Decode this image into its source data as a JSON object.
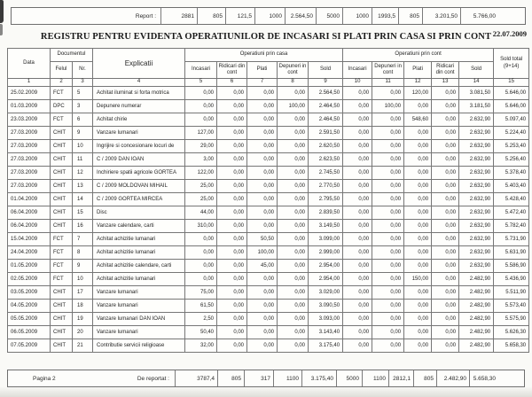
{
  "report_bar": {
    "label": "Report :",
    "values": [
      "2881",
      "805",
      "121,5",
      "1000",
      "2.564,50",
      "5000",
      "1000",
      "1993,5",
      "805",
      "3.201,50",
      "5.766,00"
    ]
  },
  "header": {
    "title": "REGISTRU PENTRU EVIDENTA OPERATIUNILOR DE INCASARI SI PLATI PRIN CASA SI PRIN CONT",
    "date": "22.07.2009"
  },
  "table": {
    "columns": {
      "data": "Data",
      "documentul": "Documentul",
      "felul": "Felul",
      "nr": "Nr.",
      "explicatii": "Explicatii",
      "operatiuni_casa": "Operatiuni prin casa",
      "operatiuni_cont": "Operatiuni prin cont",
      "casa_sub": [
        "Incasari",
        "Ridicari din cont",
        "Plati",
        "Depuneri in cont",
        "Sold"
      ],
      "cont_sub": [
        "Incasari",
        "Depuneri in cont",
        "Plati",
        "Ridicari din cont",
        "Sold"
      ],
      "sold_total_line1": "Sold total",
      "sold_total_line2": "(9+14)",
      "col_numbers": [
        "1",
        "2",
        "3",
        "4",
        "5",
        "6",
        "7",
        "8",
        "9",
        "10",
        "11",
        "12",
        "13",
        "14",
        "15"
      ]
    },
    "rows": [
      [
        "25.02.2009",
        "FCT",
        "5",
        "Achitat iluminat si forta motrica",
        "0,00",
        "0,00",
        "0,00",
        "0,00",
        "2.564,50",
        "0,00",
        "0,00",
        "120,00",
        "0,00",
        "3.081,50",
        "5.646,00"
      ],
      [
        "01.03.2009",
        "DPC",
        "3",
        "Depunere numerar",
        "0,00",
        "0,00",
        "0,00",
        "100,00",
        "2.464,50",
        "0,00",
        "100,00",
        "0,00",
        "0,00",
        "3.181,50",
        "5.646,00"
      ],
      [
        "23.03.2009",
        "FCT",
        "6",
        "Achitat chirie",
        "0,00",
        "0,00",
        "0,00",
        "0,00",
        "2.464,50",
        "0,00",
        "0,00",
        "548,60",
        "0,00",
        "2.632,90",
        "5.097,40"
      ],
      [
        "27.03.2009",
        "CHIT",
        "9",
        "Vanzare lumanari",
        "127,00",
        "0,00",
        "0,00",
        "0,00",
        "2.591,50",
        "0,00",
        "0,00",
        "0,00",
        "0,00",
        "2.632,90",
        "5.224,40"
      ],
      [
        "27.03.2009",
        "CHIT",
        "10",
        "Ingrijire si concesionare locuri de",
        "29,00",
        "0,00",
        "0,00",
        "0,00",
        "2.620,50",
        "0,00",
        "0,00",
        "0,00",
        "0,00",
        "2.632,90",
        "5.253,40"
      ],
      [
        "27.03.2009",
        "CHIT",
        "11",
        "C / 2009  DAN IOAN",
        "3,00",
        "0,00",
        "0,00",
        "0,00",
        "2.623,50",
        "0,00",
        "0,00",
        "0,00",
        "0,00",
        "2.632,90",
        "5.256,40"
      ],
      [
        "27.03.2009",
        "CHIT",
        "12",
        "Inchiriere spatii agricole GORTEA",
        "122,00",
        "0,00",
        "0,00",
        "0,00",
        "2.745,50",
        "0,00",
        "0,00",
        "0,00",
        "0,00",
        "2.632,90",
        "5.378,40"
      ],
      [
        "27.03.2009",
        "CHIT",
        "13",
        "C / 2009 MOLDOVAN MIHAIL",
        "25,00",
        "0,00",
        "0,00",
        "0,00",
        "2.770,50",
        "0,00",
        "0,00",
        "0,00",
        "0,00",
        "2.632,90",
        "5.403,40"
      ],
      [
        "01.04.2009",
        "CHIT",
        "14",
        "C / 2009  GORTEA MIRCEA",
        "25,00",
        "0,00",
        "0,00",
        "0,00",
        "2.795,50",
        "0,00",
        "0,00",
        "0,00",
        "0,00",
        "2.632,90",
        "5.428,40"
      ],
      [
        "06.04.2009",
        "CHIT",
        "15",
        "Disc",
        "44,00",
        "0,00",
        "0,00",
        "0,00",
        "2.839,50",
        "0,00",
        "0,00",
        "0,00",
        "0,00",
        "2.632,90",
        "5.472,40"
      ],
      [
        "06.04.2009",
        "CHIT",
        "16",
        "Vanzare calendare, carti",
        "310,00",
        "0,00",
        "0,00",
        "0,00",
        "3.149,50",
        "0,00",
        "0,00",
        "0,00",
        "0,00",
        "2.632,90",
        "5.782,40"
      ],
      [
        "15.04.2009",
        "FCT",
        "7",
        "Achitat achizitie lumanari",
        "0,00",
        "0,00",
        "50,50",
        "0,00",
        "3.099,00",
        "0,00",
        "0,00",
        "0,00",
        "0,00",
        "2.632,90",
        "5.731,90"
      ],
      [
        "24.04.2009",
        "FCT",
        "8",
        "Achitat achizitie lumanari",
        "0,00",
        "0,00",
        "100,00",
        "0,00",
        "2.999,00",
        "0,00",
        "0,00",
        "0,00",
        "0,00",
        "2.632,90",
        "5.631,90"
      ],
      [
        "01.05.2009",
        "FCT",
        "9",
        "Achitat achizitie calendare, carti",
        "0,00",
        "0,00",
        "45,00",
        "0,00",
        "2.954,00",
        "0,00",
        "0,00",
        "0,00",
        "0,00",
        "2.632,90",
        "5.586,90"
      ],
      [
        "02.05.2009",
        "FCT",
        "10",
        "Achitat achizitie lumanari",
        "0,00",
        "0,00",
        "0,00",
        "0,00",
        "2.954,00",
        "0,00",
        "0,00",
        "150,00",
        "0,00",
        "2.482,90",
        "5.436,90"
      ],
      [
        "03.05.2009",
        "CHIT",
        "17",
        "Vanzare lumanari",
        "75,00",
        "0,00",
        "0,00",
        "0,00",
        "3.029,00",
        "0,00",
        "0,00",
        "0,00",
        "0,00",
        "2.482,90",
        "5.511,90"
      ],
      [
        "04.05.2009",
        "CHIT",
        "18",
        "Vanzare lumanari",
        "61,50",
        "0,00",
        "0,00",
        "0,00",
        "3.090,50",
        "0,00",
        "0,00",
        "0,00",
        "0,00",
        "2.482,90",
        "5.573,40"
      ],
      [
        "05.05.2009",
        "CHIT",
        "19",
        "Vanzare lumanari DAN IOAN",
        "2,50",
        "0,00",
        "0,00",
        "0,00",
        "3.093,00",
        "0,00",
        "0,00",
        "0,00",
        "0,00",
        "2.482,90",
        "5.575,90"
      ],
      [
        "06.05.2009",
        "CHIT",
        "20",
        "Vanzare lumanari",
        "50,40",
        "0,00",
        "0,00",
        "0,00",
        "3.143,40",
        "0,00",
        "0,00",
        "0,00",
        "0,00",
        "2.482,90",
        "5.626,30"
      ],
      [
        "07.05.2009",
        "CHIT",
        "21",
        "Contributie servicii religioase",
        "32,00",
        "0,00",
        "0,00",
        "0,00",
        "3.175,40",
        "0,00",
        "0,00",
        "0,00",
        "0,00",
        "2.482,90",
        "5.658,30"
      ]
    ]
  },
  "footer_bar": {
    "page": "Pagina 2",
    "label": "De reportat :",
    "values": [
      "3787,4",
      "805",
      "317",
      "1100",
      "3.175,40",
      "5000",
      "1100",
      "2812,1",
      "805",
      "2.482,90",
      "5.658,30"
    ]
  }
}
